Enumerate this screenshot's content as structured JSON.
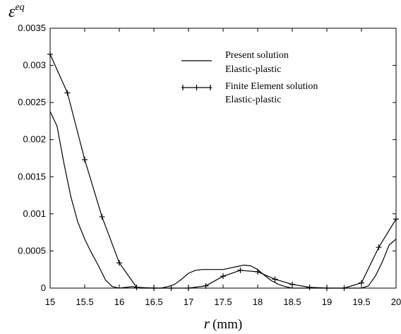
{
  "chart_data": {
    "type": "line",
    "xlabel_symbol": "r",
    "xlabel_unit": "(mm)",
    "ylabel_symbol": "ε",
    "ylabel_superscript": "eq",
    "xlim": [
      15,
      20
    ],
    "ylim": [
      0,
      0.0035
    ],
    "x_ticks": [
      15,
      15.5,
      16,
      16.5,
      17,
      17.5,
      18,
      18.5,
      19,
      19.5,
      20
    ],
    "x_tick_labels": [
      "15",
      "15.5",
      "16",
      "16.5",
      "17",
      "17.5",
      "18",
      "18.5",
      "19",
      "19.5",
      "20"
    ],
    "y_ticks": [
      0,
      0.0005,
      0.001,
      0.0015,
      0.002,
      0.0025,
      0.003,
      0.0035
    ],
    "y_tick_labels": [
      "0",
      "0.0005",
      "0.001",
      "0.0015",
      "0.002",
      "0.0025",
      "0.003",
      "0.0035"
    ],
    "grid": false,
    "legend_position": "top-right",
    "series": [
      {
        "name": "Present solution",
        "name_line2": "Elastic-plastic",
        "marker": "none",
        "color": "#000000",
        "x": [
          15,
          15.1,
          15.2,
          15.3,
          15.4,
          15.5,
          15.6,
          15.7,
          15.8,
          15.9,
          16.0,
          16.1,
          16.2,
          16.3,
          16.4,
          16.5,
          16.6,
          16.7,
          16.8,
          16.9,
          17.0,
          17.1,
          17.2,
          17.3,
          17.4,
          17.5,
          17.6,
          17.7,
          17.8,
          17.9,
          18.0,
          18.1,
          18.2,
          18.3,
          18.4,
          18.5,
          18.6,
          18.7,
          18.8,
          19.0,
          19.2,
          19.4,
          19.5,
          19.6,
          19.7,
          19.8,
          19.9,
          20.0
        ],
        "y": [
          0.00238,
          0.00218,
          0.00168,
          0.00123,
          0.00089,
          0.00066,
          0.00047,
          0.0003,
          0.00011,
          2e-05,
          0.0,
          1e-05,
          2e-05,
          0.0,
          0.0,
          0.0,
          0.0,
          2e-05,
          5e-05,
          0.00012,
          0.0002,
          0.00024,
          0.00025,
          0.00025,
          0.00025,
          0.00025,
          0.00027,
          0.00029,
          0.00031,
          0.0003,
          0.00025,
          0.00017,
          0.0001,
          5e-05,
          2e-05,
          0.0,
          0.0,
          0.0,
          0.0,
          0.0,
          0.0,
          0.0,
          0.0,
          3e-05,
          0.00016,
          0.00035,
          0.00058,
          0.00066
        ]
      },
      {
        "name": "Finite Element solution",
        "name_line2": "Elastic-plastic",
        "marker": "plus",
        "color": "#000000",
        "x": [
          15,
          15.25,
          15.5,
          15.75,
          16.0,
          16.25,
          16.5,
          16.75,
          17.0,
          17.25,
          17.5,
          17.75,
          18.0,
          18.25,
          18.5,
          18.75,
          19.0,
          19.25,
          19.5,
          19.75,
          20.0
        ],
        "y": [
          0.00315,
          0.00263,
          0.00173,
          0.00096,
          0.00034,
          1e-05,
          0.0,
          0.0,
          0.0,
          3e-05,
          0.00016,
          0.00024,
          0.00022,
          0.00012,
          5e-05,
          1e-05,
          0.0,
          0.0,
          7e-05,
          0.00055,
          0.00093
        ]
      }
    ]
  }
}
